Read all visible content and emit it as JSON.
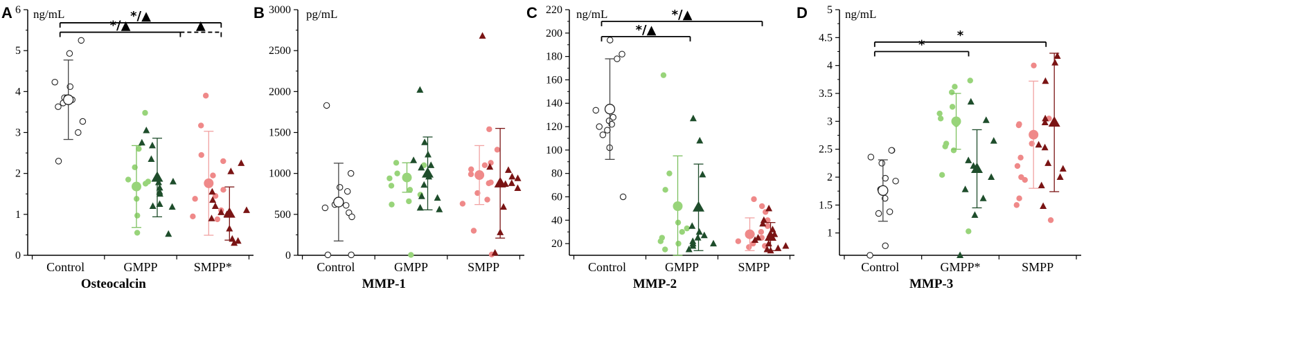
{
  "figure": {
    "panel_letters": [
      "A",
      "B",
      "C",
      "D"
    ],
    "sig_symbols": {
      "star": "*",
      "triangle": "▲",
      "star_triangle": "*/▲"
    }
  },
  "colors": {
    "control_stroke": "#222222",
    "gmpp_light": "#98d47a",
    "gmpp_dark": "#1e4d2b",
    "smpp_light": "#ef8989",
    "smpp_dark": "#7a1414",
    "axis": "#000000",
    "errorbar_control": "#444444",
    "errorbar_gmpp_light": "#7cc05f",
    "errorbar_smpp_light": "#f1a2a2"
  },
  "chart_data": [
    {
      "panel": "A",
      "type": "scatter",
      "title": "Osteocalcin",
      "unit_label": "ng/mL",
      "ylim": [
        0,
        6
      ],
      "yticks": [
        0,
        1,
        2,
        3,
        4,
        5,
        6
      ],
      "categories": [
        "Control",
        "GMPP",
        "SMPP*"
      ],
      "series": [
        {
          "name": "Control",
          "group": 0,
          "marker": "circle-open",
          "color": "control_stroke",
          "values": [
            5.25,
            4.23,
            4.12,
            3.85,
            3.85,
            3.8,
            3.63,
            3.72,
            4.93,
            3.27,
            3.0,
            2.3
          ],
          "mean": 3.8,
          "sd": 0.97
        },
        {
          "name": "GMPP (light)",
          "group": 1,
          "marker": "circle",
          "color": "gmpp_light",
          "values": [
            3.48,
            2.6,
            2.15,
            1.85,
            1.8,
            1.75,
            1.38,
            0.97,
            0.55
          ],
          "mean": 1.68,
          "sd": 1.0
        },
        {
          "name": "GMPP (dark)",
          "group": 1,
          "marker": "triangle",
          "color": "gmpp_dark",
          "values": [
            2.75,
            2.68,
            2.35,
            1.8,
            1.78,
            1.65,
            1.55,
            1.5,
            1.25,
            1.2,
            1.18,
            0.52,
            3.05
          ],
          "mean": 1.9,
          "sd": 0.96
        },
        {
          "name": "SMPP (light)",
          "group": 2,
          "marker": "circle",
          "color": "smpp_light",
          "values": [
            3.9,
            2.45,
            2.3,
            1.95,
            1.6,
            1.45,
            1.38,
            1.1,
            0.95,
            3.17,
            0.88
          ],
          "mean": 1.76,
          "sd": 1.27
        },
        {
          "name": "SMPP (dark)",
          "group": 2,
          "marker": "triangle",
          "color": "smpp_dark",
          "values": [
            2.25,
            2.05,
            1.35,
            1.2,
            1.05,
            1.1,
            1.0,
            0.9,
            0.65,
            0.4,
            0.35,
            0.3,
            1.55
          ],
          "mean": 1.02,
          "sd": 0.65
        }
      ],
      "brackets": [
        {
          "from": 0,
          "to": 2,
          "y": 5.68,
          "label": "*/▲",
          "dashed_segment": false
        },
        {
          "from": 0,
          "to": 1.55,
          "y": 5.45,
          "label": "*/▲",
          "dashed_segment": false
        },
        {
          "from": 1.55,
          "to": 2,
          "y": 5.45,
          "label": "▲",
          "dashed_segment": true
        }
      ]
    },
    {
      "panel": "B",
      "type": "scatter",
      "title": "MMP-1",
      "unit_label": "pg/mL",
      "ylim": [
        0,
        3000
      ],
      "yticks": [
        0,
        500,
        1000,
        1500,
        2000,
        2500,
        3000
      ],
      "categories": [
        "Control",
        "GMPP",
        "SMPP"
      ],
      "series": [
        {
          "name": "Control",
          "group": 0,
          "marker": "circle-open",
          "color": "control_stroke",
          "values": [
            1830,
            1000,
            830,
            780,
            620,
            610,
            580,
            520,
            470,
            5,
            5
          ],
          "mean": 650,
          "sd": 475
        },
        {
          "name": "GMPP (light)",
          "group": 1,
          "marker": "circle",
          "color": "gmpp_light",
          "values": [
            1100,
            1130,
            1000,
            940,
            850,
            800,
            740,
            660,
            620,
            5
          ],
          "mean": 950,
          "sd": 180
        },
        {
          "name": "GMPP (dark)",
          "group": 1,
          "marker": "triangle",
          "color": "gmpp_dark",
          "values": [
            2020,
            1380,
            1230,
            1160,
            1100,
            1070,
            960,
            860,
            720,
            700,
            580,
            560
          ],
          "mean": 1000,
          "sd": 445
        },
        {
          "name": "SMPP (light)",
          "group": 2,
          "marker": "circle",
          "color": "smpp_light",
          "values": [
            1540,
            1290,
            1130,
            1050,
            990,
            880,
            760,
            680,
            630,
            300,
            10,
            1100,
            890
          ],
          "mean": 980,
          "sd": 360
        },
        {
          "name": "SMPP (dark)",
          "group": 2,
          "marker": "triangle",
          "color": "smpp_dark",
          "values": [
            2680,
            1080,
            1040,
            960,
            940,
            890,
            870,
            820,
            590,
            280,
            30,
            880
          ],
          "mean": 880,
          "sd": 670
        }
      ],
      "brackets": []
    },
    {
      "panel": "C",
      "type": "scatter",
      "title": "MMP-2",
      "unit_label": "ng/mL",
      "ylim": [
        10,
        220
      ],
      "yticks": [
        20,
        40,
        60,
        80,
        100,
        120,
        140,
        160,
        180,
        200,
        220
      ],
      "categories": [
        "Control",
        "GMPP",
        "SMPP"
      ],
      "series": [
        {
          "name": "Control",
          "group": 0,
          "marker": "circle-open",
          "color": "control_stroke",
          "values": [
            194,
            182,
            178,
            128,
            125,
            122,
            120,
            117,
            113,
            102,
            60,
            134
          ],
          "mean": 135,
          "sd": 43
        },
        {
          "name": "GMPP (light)",
          "group": 1,
          "marker": "circle",
          "color": "gmpp_light",
          "values": [
            164,
            80,
            66,
            38,
            33,
            30,
            25,
            22,
            20,
            15
          ],
          "mean": 52,
          "sd": 43
        },
        {
          "name": "GMPP (dark)",
          "group": 1,
          "marker": "triangle",
          "color": "gmpp_dark",
          "values": [
            127,
            108,
            79,
            35,
            30,
            27,
            25,
            22,
            20,
            18,
            15,
            20
          ],
          "mean": 51,
          "sd": 37
        },
        {
          "name": "SMPP (light)",
          "group": 2,
          "marker": "circle",
          "color": "smpp_light",
          "values": [
            58,
            52,
            47,
            40,
            35,
            30,
            25,
            22,
            20,
            18,
            17,
            28
          ],
          "mean": 28,
          "sd": 14
        },
        {
          "name": "SMPP (dark)",
          "group": 2,
          "marker": "triangle",
          "color": "smpp_dark",
          "values": [
            50,
            40,
            37,
            32,
            28,
            25,
            23,
            20,
            18,
            16,
            15,
            14,
            28
          ],
          "mean": 26,
          "sd": 12
        }
      ],
      "brackets": [
        {
          "from": 0,
          "to": 2,
          "y": 210,
          "label": "*/▲",
          "dashed_segment": false
        },
        {
          "from": 0,
          "to": 1,
          "y": 197,
          "label": "*/▲",
          "dashed_segment": false
        }
      ]
    },
    {
      "panel": "D",
      "type": "scatter",
      "title": "MMP-3",
      "unit_label": "ng/mL",
      "ylim": [
        0.6,
        5
      ],
      "yticks": [
        1,
        1.5,
        2,
        2.5,
        3,
        3.5,
        4,
        4.5,
        5
      ],
      "categories": [
        "Control",
        "GMPP*",
        "SMPP"
      ],
      "series": [
        {
          "name": "Control",
          "group": 0,
          "marker": "circle-open",
          "color": "control_stroke",
          "values": [
            2.48,
            2.48,
            2.36,
            2.25,
            1.98,
            1.93,
            1.78,
            1.62,
            1.38,
            1.35,
            0.77,
            0.6
          ],
          "mean": 1.76,
          "sd": 0.55
        },
        {
          "name": "GMPP (light)",
          "group": 1,
          "marker": "circle",
          "color": "gmpp_light",
          "values": [
            3.73,
            3.52,
            3.26,
            3.14,
            3.05,
            2.95,
            2.6,
            2.55,
            2.48,
            2.04,
            1.03,
            3.62
          ],
          "mean": 3.0,
          "sd": 0.5
        },
        {
          "name": "GMPP (dark)",
          "group": 1,
          "marker": "triangle",
          "color": "gmpp_dark",
          "values": [
            3.35,
            3.02,
            2.65,
            2.3,
            2.2,
            2.0,
            1.78,
            1.62,
            1.32,
            0.6
          ],
          "mean": 2.15,
          "sd": 0.7
        },
        {
          "name": "SMPP (light)",
          "group": 2,
          "marker": "circle",
          "color": "smpp_light",
          "values": [
            4.0,
            3.05,
            2.93,
            2.6,
            2.35,
            2.2,
            2.0,
            1.95,
            1.62,
            1.5,
            1.23,
            2.95
          ],
          "mean": 2.76,
          "sd": 0.96
        },
        {
          "name": "SMPP (dark)",
          "group": 2,
          "marker": "triangle",
          "color": "smpp_dark",
          "values": [
            4.17,
            4.05,
            3.72,
            3.05,
            2.98,
            2.58,
            2.53,
            2.25,
            2.15,
            2.0,
            1.48,
            1.85
          ],
          "mean": 2.98,
          "sd": 1.24
        }
      ],
      "brackets": [
        {
          "from": 0,
          "to": 2,
          "y": 4.42,
          "label": "*",
          "dashed_segment": false
        },
        {
          "from": 0,
          "to": 1,
          "y": 4.25,
          "label": "*",
          "dashed_segment": false
        }
      ]
    }
  ]
}
